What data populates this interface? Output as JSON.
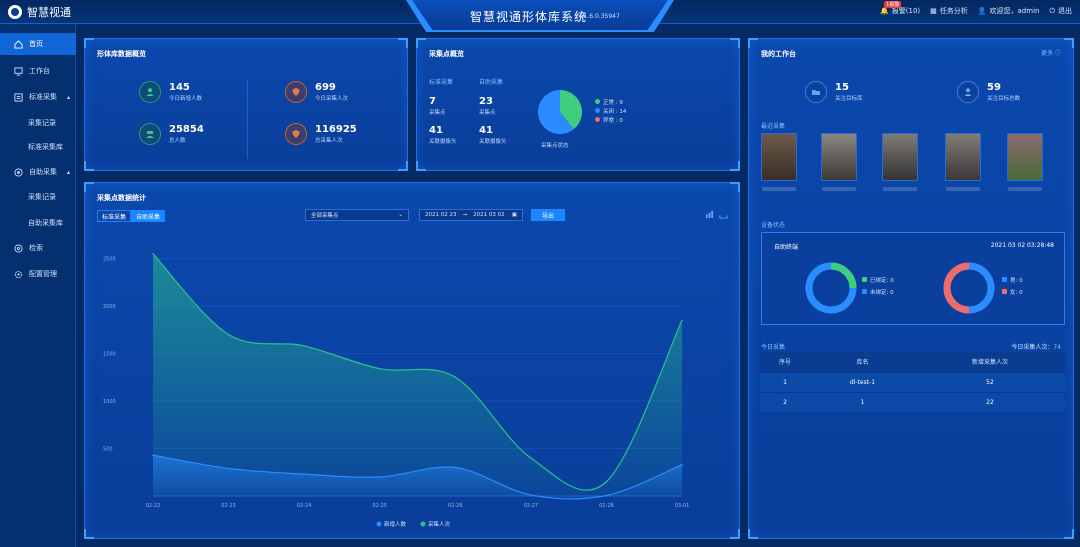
{
  "header": {
    "brand": "智慧视通",
    "title": "智慧视通形体库系统",
    "version": "v1.6.0.35947",
    "alarm_label": "报警(10)",
    "alarm_tag": "1报警",
    "task_label": "任务分析",
    "welcome": "欢迎您，admin",
    "logout": "退出"
  },
  "sidebar": {
    "items": [
      {
        "label": "首页",
        "icon": "home-icon"
      },
      {
        "label": "工作台",
        "icon": "workbench-icon"
      },
      {
        "label": "标准采集",
        "icon": "collect-icon"
      },
      {
        "label": "采集记录",
        "icon": ""
      },
      {
        "label": "标准采集库",
        "icon": ""
      },
      {
        "label": "自助采集",
        "icon": "self-collect-icon"
      },
      {
        "label": "采集记录",
        "icon": ""
      },
      {
        "label": "自助采集库",
        "icon": ""
      },
      {
        "label": "检索",
        "icon": "search-icon"
      },
      {
        "label": "配置管理",
        "icon": "config-icon"
      }
    ]
  },
  "overview": {
    "title": "形体库数据概览",
    "stats": [
      {
        "value": "145",
        "label": "今日新增人数"
      },
      {
        "value": "699",
        "label": "今日采集人次"
      },
      {
        "value": "25854",
        "label": "总人数"
      },
      {
        "value": "116925",
        "label": "总采集人次"
      }
    ]
  },
  "points": {
    "title": "采集点概览",
    "standard_label": "标准采集",
    "self_label": "自助采集",
    "standard_points": "7",
    "self_points": "23",
    "points_label": "采集点",
    "standard_cams": "41",
    "self_cams": "41",
    "cams_label": "关联摄像头",
    "pie_label": "采集点状态",
    "legend": [
      {
        "label": "正常",
        "value": "9",
        "color": "#3ecf7e"
      },
      {
        "label": "关闭",
        "value": "14",
        "color": "#2b8cff"
      },
      {
        "label": "异常",
        "value": "0",
        "color": "#f26b6b"
      }
    ]
  },
  "workbench": {
    "title": "我的工作台",
    "more": "更多",
    "targets": {
      "value": "15",
      "label": "关注目标库"
    },
    "people": {
      "value": "59",
      "label": "关注目标总数"
    },
    "recent_label": "最近采集",
    "device_title": "设备状态",
    "device_sub": "自助终端",
    "device_time": "2021 03 02 03:28:48",
    "ring1": [
      {
        "label": "已绑定",
        "value": "0"
      },
      {
        "label": "未绑定",
        "value": "0"
      }
    ],
    "ring2": [
      {
        "label": "男",
        "value": "0"
      },
      {
        "label": "女",
        "value": "0"
      }
    ],
    "today_label": "今日采集",
    "today_count_label": "今日采集人次：",
    "today_count": "74",
    "table_headers": [
      "序号",
      "库名",
      "新增采集人次"
    ],
    "table_rows": [
      [
        "1",
        "dl-test-1",
        "52"
      ],
      [
        "2",
        "1",
        "22"
      ]
    ]
  },
  "stats_panel": {
    "title": "采集点数据统计",
    "tab_standard": "标准采集",
    "tab_self": "自助采集",
    "select_value": "全部采集点",
    "date_from": "2021 02 23",
    "date_sep": "→",
    "date_to": "2021 03 02",
    "export_label": "导出"
  },
  "chart_data": {
    "type": "area",
    "x": [
      "02-22",
      "02-23",
      "02-24",
      "02-25",
      "02-26",
      "02-27",
      "02-28",
      "03-01"
    ],
    "y_ticks": [
      "2500",
      "2000",
      "1500",
      "1000",
      "500"
    ],
    "ylim": [
      0,
      2600
    ],
    "series": [
      {
        "name": "新增人数",
        "color": "#2b8cff",
        "values": [
          430,
          290,
          230,
          200,
          300,
          10,
          5,
          330
        ]
      },
      {
        "name": "采集人次",
        "color": "#2bc28a",
        "values": [
          2550,
          1700,
          1580,
          1340,
          1250,
          400,
          150,
          1850
        ]
      }
    ],
    "legend_position": "bottom",
    "grid": true
  }
}
